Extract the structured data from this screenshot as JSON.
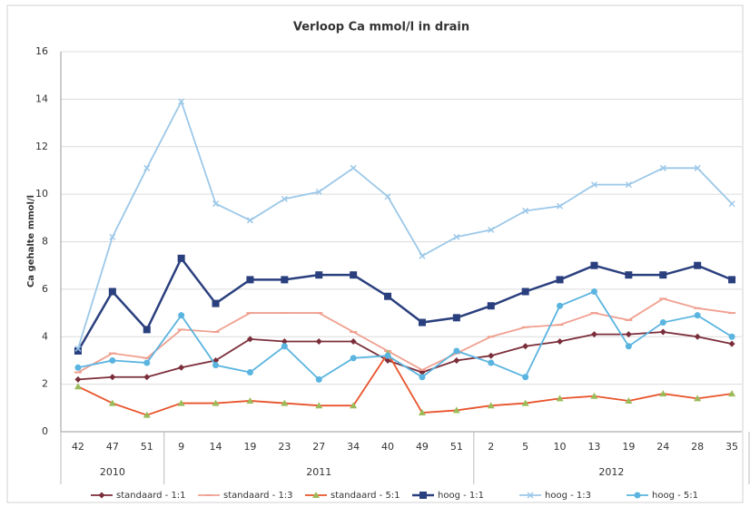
{
  "chart_data": {
    "type": "line",
    "title": "Verloop Ca mmol/l in drain",
    "y_label": "Ca gehalte mmol/l",
    "categories": [
      "42",
      "47",
      "51",
      "9",
      "14",
      "19",
      "23",
      "27",
      "34",
      "40",
      "49",
      "51",
      "2",
      "5",
      "10",
      "13",
      "19",
      "24",
      "28",
      "35"
    ],
    "x_groups": [
      {
        "label": "2010",
        "span": 3
      },
      {
        "label": "2011",
        "span": 9
      },
      {
        "label": "2012",
        "span": 8
      }
    ],
    "ylim": [
      0,
      16
    ],
    "yticks": [
      0,
      2,
      4,
      6,
      8,
      10,
      12,
      14,
      16
    ],
    "grid": true,
    "legend": "bottom",
    "series": [
      {
        "name": "standaard - 1:1",
        "color": "#7b2d3a",
        "marker": "diamond",
        "marker_color": "#7b2d3a",
        "values": [
          2.2,
          2.3,
          2.3,
          2.7,
          3.0,
          3.9,
          3.8,
          3.8,
          3.8,
          3.0,
          2.5,
          3.0,
          3.2,
          3.6,
          3.8,
          4.1,
          4.1,
          4.2,
          4.0,
          3.7
        ]
      },
      {
        "name": "standaard - 1:3",
        "color": "#f0a090",
        "marker": "dash",
        "marker_color": "#f0a090",
        "values": [
          2.5,
          3.3,
          3.1,
          4.3,
          4.2,
          5.0,
          5.0,
          5.0,
          4.2,
          3.4,
          2.6,
          3.3,
          4.0,
          4.4,
          4.5,
          5.0,
          4.7,
          5.6,
          5.2,
          5.0
        ]
      },
      {
        "name": "standaard - 5:1",
        "color": "#e8532a",
        "marker": "triangle",
        "marker_color": "#9bbb59",
        "values": [
          1.9,
          1.2,
          0.7,
          1.2,
          1.2,
          1.3,
          1.2,
          1.1,
          1.1,
          3.3,
          0.8,
          0.9,
          1.1,
          1.2,
          1.4,
          1.5,
          1.3,
          1.6,
          1.4,
          1.6
        ]
      },
      {
        "name": "hoog - 1:1",
        "color": "#2a3f7e",
        "marker": "square",
        "marker_color": "#2a3f7e",
        "values": [
          3.4,
          5.9,
          4.3,
          7.3,
          5.4,
          6.4,
          6.4,
          6.6,
          6.6,
          5.7,
          4.6,
          4.8,
          5.3,
          5.9,
          6.4,
          7.0,
          6.6,
          6.6,
          7.0,
          6.4
        ]
      },
      {
        "name": "hoog - 1:3",
        "color": "#9cc8e8",
        "marker": "x",
        "marker_color": "#9cc8e8",
        "values": [
          3.5,
          8.2,
          11.1,
          13.9,
          9.6,
          8.9,
          9.8,
          10.1,
          11.1,
          9.9,
          7.4,
          8.2,
          8.5,
          9.3,
          9.5,
          10.4,
          10.4,
          11.1,
          11.1,
          9.6
        ]
      },
      {
        "name": "hoog - 5:1",
        "color": "#5ab4e0",
        "marker": "circle",
        "marker_color": "#5ab4e0",
        "values": [
          2.7,
          3.0,
          2.9,
          4.9,
          2.8,
          2.5,
          3.6,
          2.2,
          3.1,
          3.2,
          2.3,
          3.4,
          2.9,
          2.3,
          5.3,
          5.9,
          3.6,
          4.6,
          4.9,
          4.0
        ]
      }
    ]
  }
}
